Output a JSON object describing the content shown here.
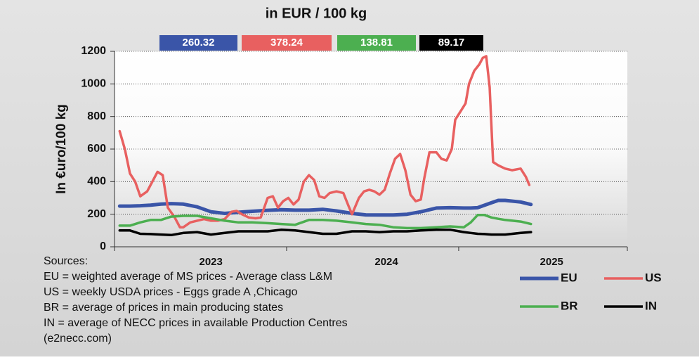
{
  "chart_data": {
    "type": "line",
    "title": "in EUR / 100 kg",
    "y_label": "In €uro/100 kg",
    "xlim": [
      2023,
      2025.98
    ],
    "ylim": [
      0,
      1200
    ],
    "yticks": [
      0,
      200,
      400,
      600,
      800,
      1000,
      1200
    ],
    "xticks": [
      {
        "value": 2023.56,
        "label": "2023"
      },
      {
        "value": 2024.58,
        "label": "2024"
      },
      {
        "value": 2025.54,
        "label": "2025"
      }
    ],
    "xtick_marks": [
      2024,
      2025
    ],
    "grid": true,
    "x": [
      2023.03,
      2023.09,
      2023.15,
      2023.21,
      2023.27,
      2023.33,
      2023.4,
      2023.48,
      2023.56,
      2023.64,
      2023.72,
      2023.8,
      2023.89,
      2023.97,
      2024.05,
      2024.13,
      2024.21,
      2024.29,
      2024.38,
      2024.46,
      2024.54,
      2024.62,
      2024.7,
      2024.78,
      2024.87,
      2024.95,
      2025.03,
      2025.07,
      2025.11,
      2025.15,
      2025.19,
      2025.23,
      2025.27,
      2025.36,
      2025.42
    ],
    "series": [
      {
        "name": "EU",
        "color": "#3a55a8",
        "latest": 260.32,
        "values": [
          250,
          250,
          252,
          256,
          262,
          265,
          262,
          245,
          215,
          205,
          212,
          218,
          224,
          228,
          225,
          225,
          230,
          220,
          205,
          196,
          195,
          195,
          200,
          215,
          238,
          240,
          238,
          238,
          240,
          255,
          270,
          285,
          285,
          275,
          260
        ]
      },
      {
        "name": "US",
        "color": "#e86060",
        "latest": 378.24,
        "x": [
          2023.03,
          2023.06,
          2023.09,
          2023.12,
          2023.15,
          2023.19,
          2023.22,
          2023.25,
          2023.28,
          2023.31,
          2023.35,
          2023.38,
          2023.4,
          2023.44,
          2023.48,
          2023.52,
          2023.56,
          2023.6,
          2023.64,
          2023.68,
          2023.71,
          2023.74,
          2023.78,
          2023.82,
          2023.85,
          2023.89,
          2023.92,
          2023.95,
          2023.98,
          2024.01,
          2024.04,
          2024.07,
          2024.1,
          2024.13,
          2024.16,
          2024.19,
          2024.22,
          2024.25,
          2024.29,
          2024.33,
          2024.36,
          2024.38,
          2024.42,
          2024.45,
          2024.48,
          2024.51,
          2024.54,
          2024.57,
          2024.6,
          2024.63,
          2024.66,
          2024.69,
          2024.72,
          2024.75,
          2024.78,
          2024.8,
          2024.83,
          2024.87,
          2024.9,
          2024.93,
          2024.96,
          2024.98,
          2025.01,
          2025.04,
          2025.06,
          2025.09,
          2025.12,
          2025.14,
          2025.16,
          2025.18,
          2025.2,
          2025.23,
          2025.27,
          2025.31,
          2025.36,
          2025.39,
          2025.41
        ],
        "values": [
          710,
          600,
          450,
          400,
          310,
          340,
          400,
          460,
          440,
          240,
          180,
          120,
          120,
          150,
          160,
          170,
          160,
          160,
          170,
          215,
          220,
          200,
          180,
          175,
          180,
          300,
          310,
          240,
          280,
          300,
          260,
          290,
          400,
          440,
          410,
          310,
          300,
          330,
          340,
          330,
          250,
          200,
          300,
          340,
          350,
          340,
          320,
          350,
          450,
          540,
          570,
          470,
          320,
          280,
          290,
          420,
          580,
          580,
          540,
          530,
          600,
          780,
          830,
          880,
          1000,
          1080,
          1120,
          1160,
          1170,
          980,
          520,
          500,
          480,
          470,
          480,
          430,
          380
        ]
      },
      {
        "name": "BR",
        "color": "#4caf50",
        "latest": 138.81,
        "values": [
          130,
          130,
          150,
          165,
          165,
          185,
          190,
          190,
          175,
          160,
          150,
          150,
          145,
          140,
          135,
          165,
          165,
          160,
          150,
          140,
          135,
          120,
          115,
          115,
          120,
          125,
          120,
          150,
          195,
          195,
          180,
          172,
          165,
          155,
          140
        ]
      },
      {
        "name": "IN",
        "color": "#000000",
        "latest": 89.17,
        "values": [
          100,
          100,
          80,
          78,
          75,
          72,
          85,
          90,
          75,
          85,
          95,
          95,
          95,
          105,
          100,
          90,
          80,
          80,
          95,
          95,
          90,
          95,
          95,
          100,
          105,
          105,
          90,
          85,
          80,
          78,
          75,
          75,
          75,
          85,
          90
        ]
      }
    ],
    "notes": [
      "Sources:",
      "EU =  weighted average of MS prices  -  Average class  L&M",
      "US =  weekly USDA prices  -  Eggs grade A ,Chicago",
      "BR =  average of prices in main producing states",
      "IN =  average of NECC prices in available  Production Centres",
      "(e2necc.com)"
    ]
  }
}
